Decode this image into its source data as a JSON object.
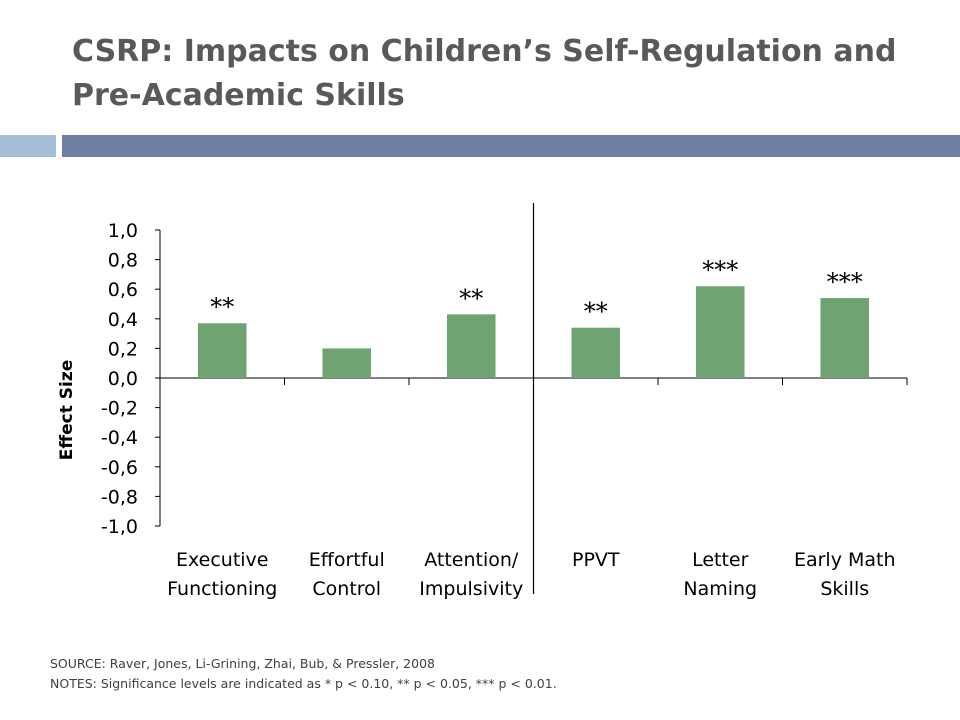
{
  "slide": {
    "title": "CSRP: Impacts on Children’s Self-Regulation and Pre-Academic Skills",
    "source": "SOURCE: Raver, Jones, Li-Grining, Zhai, Bub, & Pressler, 2008",
    "notes": "NOTES: Significance levels are indicated as * p < 0.10, ** p < 0.05, *** p < 0.01.",
    "colors": {
      "title": "#595959",
      "accent_light": "#a6bed6",
      "accent_dark": "#6f7fa4",
      "bar": "#6fa472"
    }
  },
  "chart_data": {
    "type": "bar",
    "categories": [
      [
        "Executive",
        "Functioning"
      ],
      [
        "Effortful",
        "Control"
      ],
      [
        "Attention/",
        "Impulsivity"
      ],
      [
        "PPVT",
        ""
      ],
      [
        "Letter",
        "Naming"
      ],
      [
        "Early Math",
        "Skills"
      ]
    ],
    "values": [
      0.37,
      0.2,
      0.43,
      0.34,
      0.62,
      0.54
    ],
    "data_labels": [
      "**",
      "",
      "**",
      "**",
      "***",
      "***"
    ],
    "ylabel": "Effect Size",
    "ylim": [
      -1.0,
      1.0
    ],
    "yticks": [
      1.0,
      0.8,
      0.6,
      0.4,
      0.2,
      0.0,
      -0.2,
      -0.4,
      -0.6,
      -0.8,
      -1.0
    ],
    "ytick_labels": [
      "1,0",
      "0,8",
      "0,6",
      "0,4",
      "0,2",
      "0,0",
      "-0,2",
      "-0,4",
      "-0,6",
      "-0,8",
      "-1,0"
    ],
    "divider_after_category": 2,
    "grid": false,
    "legend": "none"
  }
}
